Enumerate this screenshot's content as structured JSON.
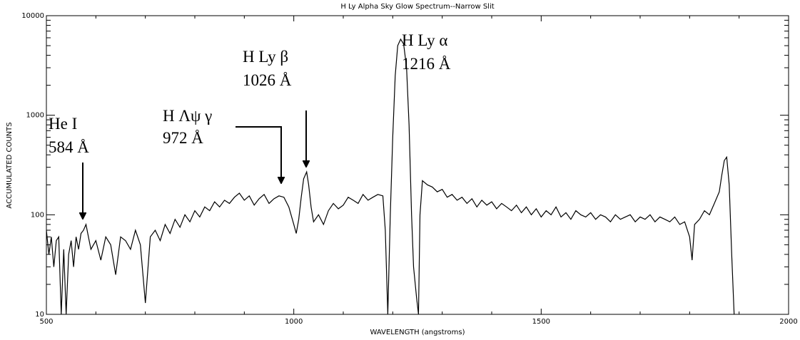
{
  "chart_data": {
    "type": "line",
    "title": "H Ly Alpha Sky Glow Spectrum--Narrow Slit",
    "x_label": "WAVELENGTH (angstroms)",
    "y_label": "ACCUMULATED COUNTS",
    "xlim": [
      500,
      2000
    ],
    "ylim": [
      10,
      10000
    ],
    "xticks": [
      500,
      1000,
      1500,
      2000
    ],
    "yticks": [
      10,
      100,
      1000,
      10000
    ],
    "x_minor_ticks": [
      600,
      700,
      800,
      900,
      1100,
      1200,
      1300,
      1400,
      1600,
      1700,
      1800,
      1900
    ],
    "y_minor_ticks": [
      20,
      30,
      40,
      50,
      60,
      70,
      80,
      90,
      200,
      300,
      400,
      500,
      600,
      700,
      800,
      900,
      2000,
      3000,
      4000,
      5000,
      6000,
      7000,
      8000,
      9000
    ],
    "log_y": true,
    "color": "#000000",
    "annotations": [
      {
        "text": "He I"
      },
      {
        "text": "584 Å"
      },
      {
        "text": "H Λψ γ"
      },
      {
        "text": "972 Å"
      },
      {
        "text": "H Ly β"
      },
      {
        "text": "1026 Å"
      },
      {
        "text": "H Ly α"
      },
      {
        "text": "1216 Å"
      }
    ],
    "x": [
      500,
      505,
      510,
      515,
      520,
      525,
      530,
      535,
      540,
      545,
      550,
      555,
      560,
      565,
      570,
      575,
      580,
      585,
      590,
      600,
      610,
      620,
      630,
      640,
      650,
      660,
      670,
      680,
      690,
      700,
      710,
      720,
      730,
      740,
      750,
      760,
      770,
      780,
      790,
      800,
      810,
      820,
      830,
      840,
      850,
      860,
      870,
      880,
      890,
      900,
      910,
      920,
      930,
      940,
      950,
      960,
      970,
      980,
      990,
      1000,
      1005,
      1010,
      1015,
      1020,
      1026,
      1030,
      1035,
      1040,
      1050,
      1060,
      1070,
      1080,
      1090,
      1100,
      1110,
      1120,
      1130,
      1140,
      1150,
      1160,
      1170,
      1180,
      1185,
      1190,
      1195,
      1200,
      1205,
      1210,
      1216,
      1222,
      1228,
      1233,
      1238,
      1242,
      1248,
      1252,
      1255,
      1260,
      1270,
      1280,
      1290,
      1300,
      1310,
      1320,
      1330,
      1340,
      1350,
      1360,
      1370,
      1380,
      1390,
      1400,
      1410,
      1420,
      1430,
      1440,
      1450,
      1460,
      1470,
      1480,
      1490,
      1500,
      1510,
      1520,
      1530,
      1540,
      1550,
      1560,
      1570,
      1580,
      1590,
      1600,
      1610,
      1620,
      1630,
      1640,
      1650,
      1660,
      1670,
      1680,
      1690,
      1700,
      1710,
      1720,
      1730,
      1740,
      1750,
      1760,
      1770,
      1780,
      1790,
      1800,
      1805,
      1810,
      1820,
      1830,
      1840,
      1850,
      1860,
      1865,
      1870,
      1875,
      1880,
      1885,
      1890
    ],
    "values": [
      70,
      40,
      60,
      30,
      55,
      60,
      10,
      45,
      10,
      40,
      55,
      30,
      60,
      45,
      65,
      70,
      80,
      60,
      45,
      55,
      35,
      60,
      50,
      25,
      60,
      55,
      45,
      70,
      50,
      13,
      60,
      70,
      55,
      80,
      65,
      90,
      75,
      100,
      85,
      110,
      95,
      120,
      110,
      135,
      120,
      140,
      130,
      150,
      165,
      140,
      155,
      125,
      145,
      160,
      130,
      145,
      155,
      150,
      120,
      80,
      65,
      90,
      150,
      230,
      270,
      200,
      120,
      85,
      100,
      80,
      110,
      130,
      115,
      125,
      150,
      140,
      130,
      160,
      140,
      150,
      160,
      155,
      70,
      10,
      100,
      600,
      2500,
      5000,
      5800,
      5200,
      3000,
      800,
      100,
      30,
      15,
      10,
      100,
      220,
      200,
      190,
      170,
      180,
      150,
      160,
      140,
      150,
      130,
      145,
      120,
      140,
      125,
      135,
      115,
      130,
      120,
      110,
      125,
      105,
      120,
      100,
      115,
      95,
      110,
      100,
      120,
      95,
      105,
      90,
      110,
      100,
      95,
      105,
      90,
      100,
      95,
      85,
      100,
      90,
      95,
      100,
      85,
      95,
      90,
      100,
      85,
      95,
      90,
      85,
      95,
      80,
      85,
      60,
      35,
      80,
      90,
      110,
      100,
      130,
      170,
      250,
      350,
      380,
      200,
      40,
      10
    ]
  }
}
